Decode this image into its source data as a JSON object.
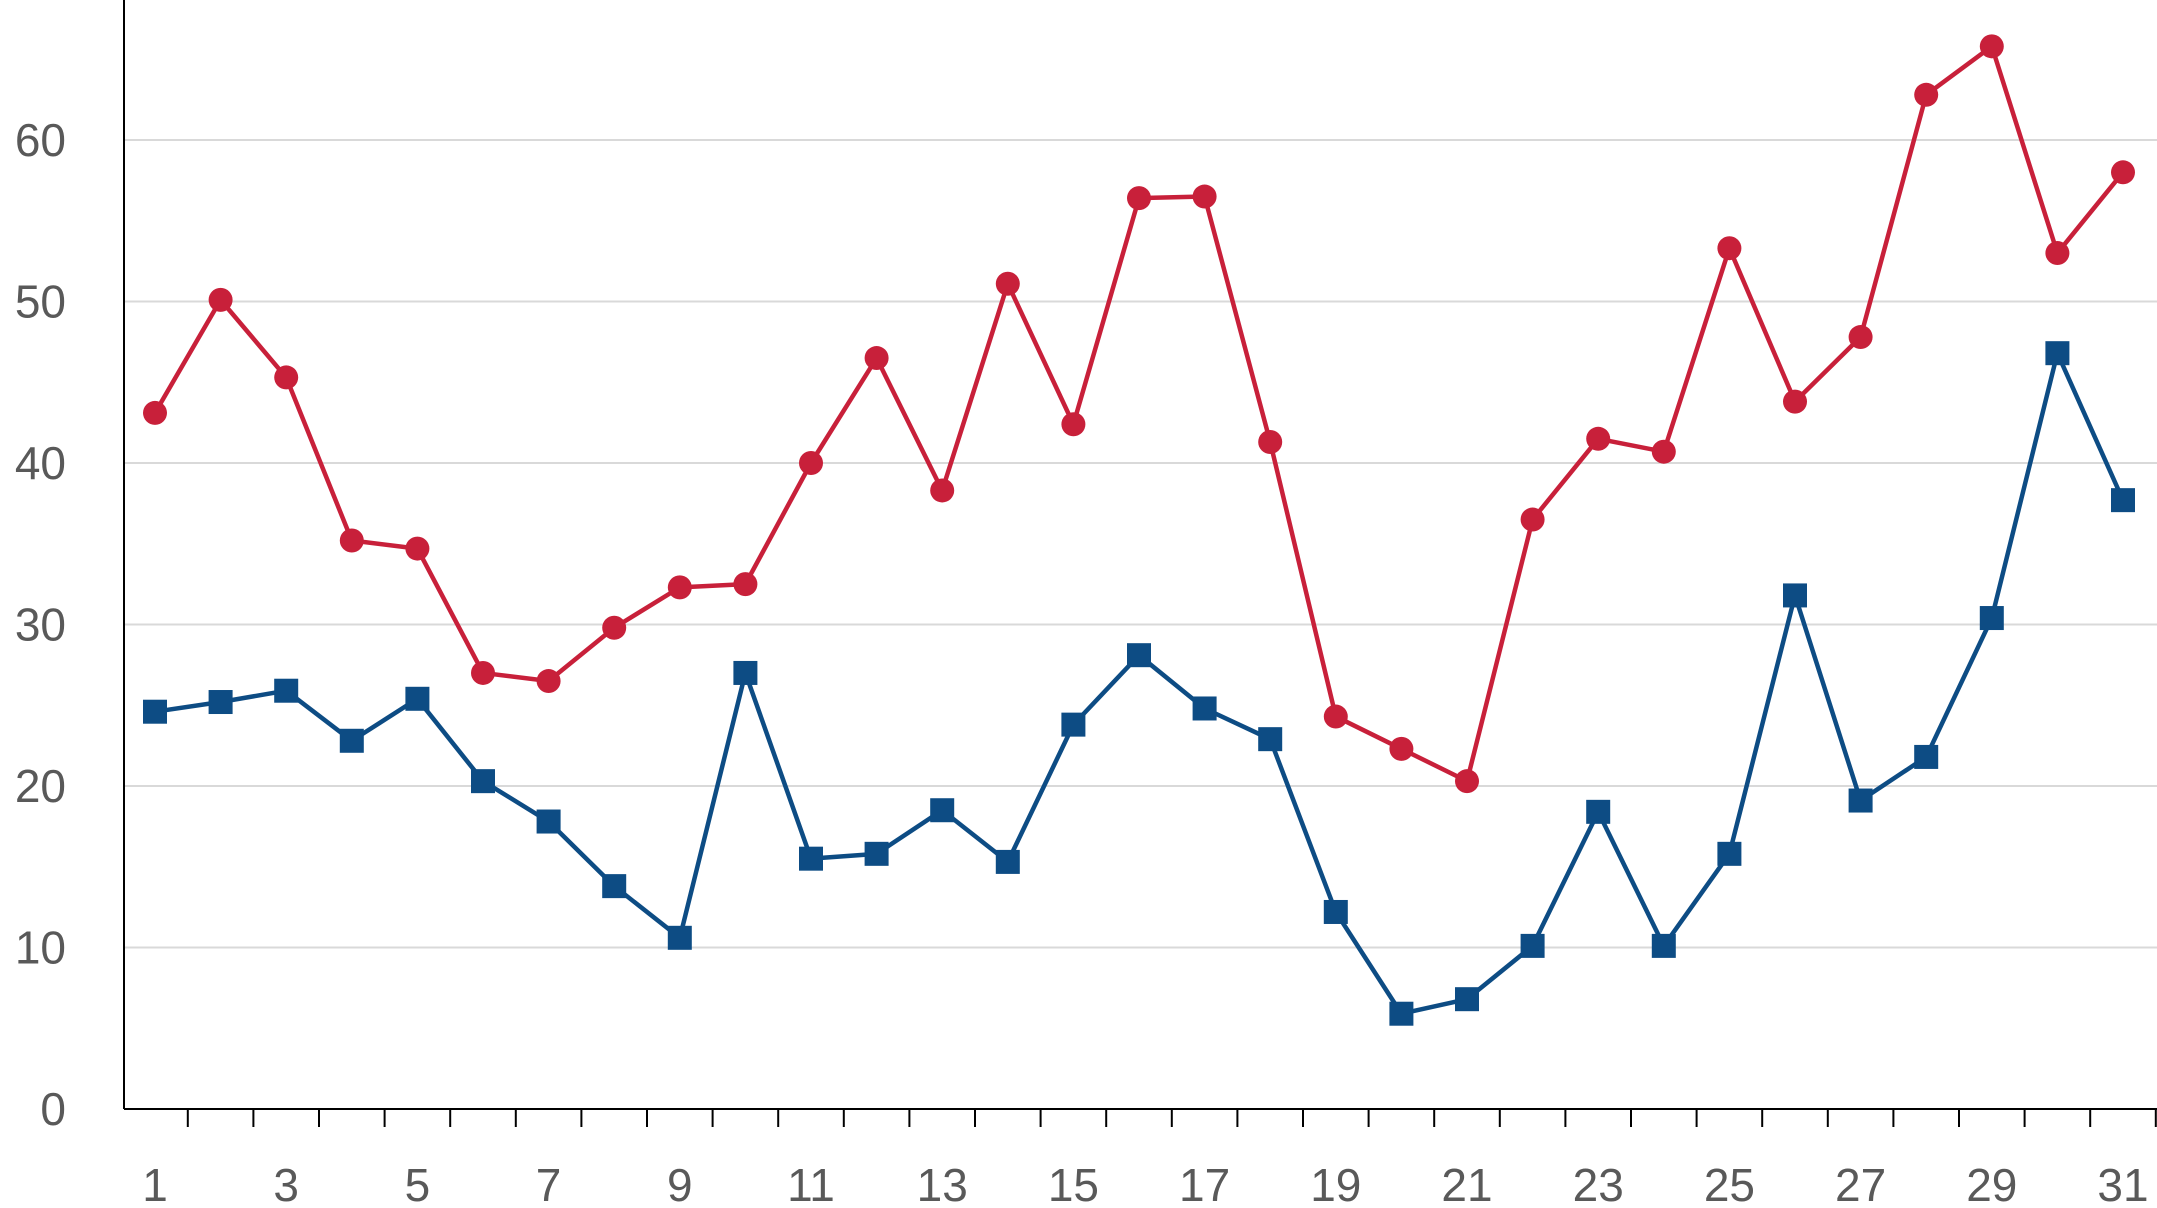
{
  "chart_data": {
    "type": "line",
    "title": "",
    "xlabel": "",
    "ylabel": "",
    "x": [
      1,
      2,
      3,
      4,
      5,
      6,
      7,
      8,
      9,
      10,
      11,
      12,
      13,
      14,
      15,
      16,
      17,
      18,
      19,
      20,
      21,
      22,
      23,
      24,
      25,
      26,
      27,
      28,
      29,
      30,
      31
    ],
    "x_tick_labels": [
      "1",
      "3",
      "5",
      "7",
      "9",
      "11",
      "13",
      "15",
      "17",
      "19",
      "21",
      "23",
      "25",
      "27",
      "29",
      "31"
    ],
    "y_tick_labels": [
      "0",
      "10",
      "20",
      "30",
      "40",
      "50",
      "60"
    ],
    "ylim": [
      0,
      69
    ],
    "grid": true,
    "legend": "none",
    "series": [
      {
        "color": "#c8203a",
        "marker": "circle",
        "values": [
          43.1,
          50.1,
          45.3,
          35.2,
          34.7,
          27.0,
          26.5,
          29.8,
          32.3,
          32.5,
          40.0,
          46.5,
          38.3,
          51.1,
          42.4,
          56.4,
          56.5,
          41.3,
          24.3,
          22.3,
          20.3,
          36.5,
          41.5,
          40.7,
          53.3,
          43.8,
          47.8,
          62.8,
          65.8,
          53.0,
          58.0
        ]
      },
      {
        "color": "#0d4c84",
        "marker": "square",
        "values": [
          24.6,
          25.2,
          25.9,
          22.8,
          25.4,
          20.3,
          17.8,
          13.8,
          10.6,
          27.0,
          15.5,
          15.8,
          18.5,
          15.3,
          23.8,
          28.1,
          24.8,
          22.9,
          12.2,
          5.9,
          6.8,
          10.1,
          18.4,
          10.1,
          15.8,
          31.8,
          19.1,
          21.8,
          30.4,
          46.8,
          37.7
        ]
      }
    ]
  }
}
